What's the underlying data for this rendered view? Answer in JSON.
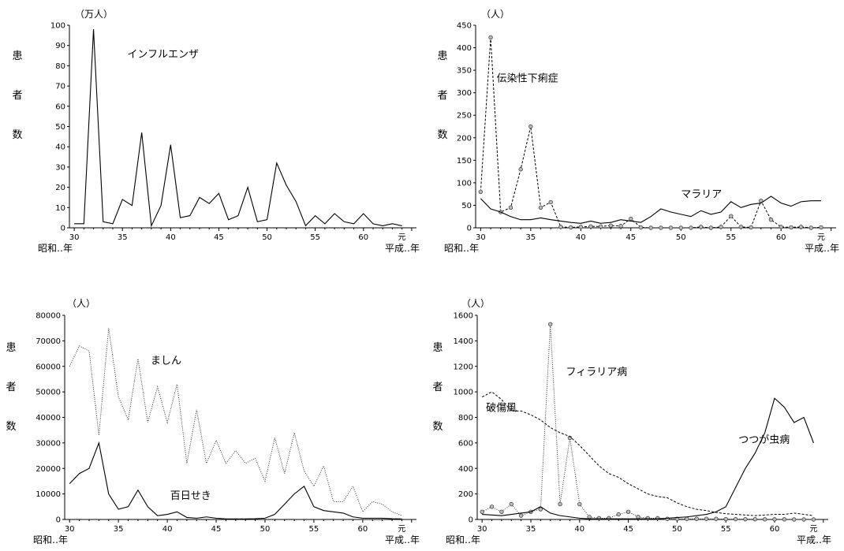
{
  "chart_data": [
    {
      "id": "influenza",
      "type": "line",
      "unit": "（万人）",
      "ylabel": [
        "患",
        "者",
        "数"
      ],
      "ylim": [
        0,
        100
      ],
      "yticks": [
        0,
        10,
        20,
        30,
        40,
        50,
        60,
        70,
        80,
        90,
        100
      ],
      "xlim": [
        29.5,
        65.5
      ],
      "xticks": [
        30,
        35,
        40,
        45,
        50,
        55,
        60
      ],
      "xtick_labels": [
        "30",
        "35",
        "40",
        "45",
        "50",
        "55",
        "60"
      ],
      "x_end_label": "元",
      "x_left_label": "昭和‥年",
      "x_right_label": "平成‥年",
      "series": [
        {
          "name": "インフルエンザ",
          "style": "solid",
          "label_pos": [
            35.5,
            84
          ],
          "x": [
            30,
            31,
            32,
            33,
            34,
            35,
            36,
            37,
            38,
            39,
            40,
            41,
            42,
            43,
            44,
            45,
            46,
            47,
            48,
            49,
            50,
            51,
            52,
            53,
            54,
            55,
            56,
            57,
            58,
            59,
            60,
            61,
            62,
            63,
            64
          ],
          "values": [
            2,
            2,
            98,
            3,
            2,
            14,
            11,
            47,
            1,
            11,
            41,
            5,
            6,
            15,
            12,
            17,
            4,
            6,
            20,
            3,
            4,
            32,
            21,
            13,
            1,
            6,
            2,
            7,
            3,
            2,
            7,
            2,
            1,
            2,
            1
          ]
        }
      ]
    },
    {
      "id": "dysentery-malaria",
      "type": "line",
      "unit": "（人）",
      "ylabel": [
        "患",
        "者",
        "数"
      ],
      "ylim": [
        0,
        450
      ],
      "yticks": [
        0,
        50,
        100,
        150,
        200,
        250,
        300,
        350,
        400,
        450
      ],
      "xlim": [
        29.5,
        65.5
      ],
      "xticks": [
        30,
        35,
        40,
        45,
        50,
        55,
        60
      ],
      "xtick_labels": [
        "30",
        "35",
        "40",
        "45",
        "50",
        "55",
        "60"
      ],
      "x_end_label": "元",
      "x_left_label": "昭和‥年",
      "x_right_label": "平成‥年",
      "series": [
        {
          "name": "伝染性下痢症",
          "style": "dashed",
          "markers": true,
          "label_pos": [
            31.6,
            325
          ],
          "x": [
            30,
            31,
            32,
            33,
            34,
            35,
            36,
            37,
            38,
            39,
            40,
            41,
            42,
            43,
            44,
            45,
            46,
            47,
            48,
            49,
            50,
            51,
            52,
            53,
            54,
            55,
            56,
            57,
            58,
            59,
            60,
            61,
            62,
            63,
            64
          ],
          "values": [
            80,
            423,
            35,
            45,
            130,
            225,
            45,
            57,
            2,
            1,
            2,
            3,
            3,
            5,
            4,
            20,
            1,
            0,
            0,
            0,
            0,
            0,
            2,
            0,
            2,
            26,
            2,
            1,
            60,
            18,
            2,
            1,
            2,
            0,
            1
          ]
        },
        {
          "name": "マラリア",
          "style": "solid",
          "markers": false,
          "label_pos": [
            50,
            67
          ],
          "x": [
            30,
            31,
            32,
            33,
            34,
            35,
            36,
            37,
            38,
            39,
            40,
            41,
            42,
            43,
            44,
            45,
            46,
            47,
            48,
            49,
            50,
            51,
            52,
            53,
            54,
            55,
            56,
            57,
            58,
            59,
            60,
            61,
            62,
            63,
            64
          ],
          "values": [
            65,
            42,
            35,
            25,
            18,
            18,
            22,
            18,
            15,
            12,
            10,
            15,
            10,
            12,
            18,
            15,
            12,
            25,
            42,
            35,
            30,
            25,
            38,
            30,
            35,
            58,
            45,
            52,
            55,
            70,
            55,
            48,
            58,
            60,
            60
          ]
        }
      ]
    },
    {
      "id": "measles-pertussis",
      "type": "line",
      "unit": "（人）",
      "ylabel": [
        "患",
        "者",
        "数"
      ],
      "ylim": [
        0,
        80000
      ],
      "yticks": [
        0,
        10000,
        20000,
        30000,
        40000,
        50000,
        60000,
        70000,
        80000
      ],
      "xlim": [
        29.5,
        65.5
      ],
      "xticks": [
        30,
        35,
        40,
        45,
        50,
        55,
        60
      ],
      "xtick_labels": [
        "30",
        "35",
        "40",
        "45",
        "50",
        "55",
        "60"
      ],
      "x_end_label": "元",
      "x_left_label": "昭和‥年",
      "x_right_label": "平成‥年",
      "series": [
        {
          "name": "ましん",
          "style": "dotted",
          "label_pos": [
            38.3,
            61000
          ],
          "x": [
            30,
            31,
            32,
            33,
            34,
            35,
            36,
            37,
            38,
            39,
            40,
            41,
            42,
            43,
            44,
            45,
            46,
            47,
            48,
            49,
            50,
            51,
            52,
            53,
            54,
            55,
            56,
            57,
            58,
            59,
            60,
            61,
            62,
            63,
            64
          ],
          "values": [
            60000,
            68000,
            66000,
            33000,
            75000,
            48000,
            39000,
            63000,
            38000,
            52000,
            38000,
            53000,
            22000,
            43000,
            22000,
            31000,
            22000,
            27000,
            22000,
            24000,
            15000,
            32000,
            18000,
            34000,
            19000,
            13000,
            21000,
            7000,
            7000,
            13000,
            3000,
            7000,
            6000,
            3000,
            1500
          ]
        },
        {
          "name": "百日せき",
          "style": "solid",
          "label_pos": [
            40.3,
            8000
          ],
          "x": [
            30,
            31,
            32,
            33,
            34,
            35,
            36,
            37,
            38,
            39,
            40,
            41,
            42,
            43,
            44,
            45,
            46,
            47,
            48,
            49,
            50,
            51,
            52,
            53,
            54,
            55,
            56,
            57,
            58,
            59,
            60,
            61,
            62,
            63,
            64
          ],
          "values": [
            14000,
            18000,
            20000,
            30000,
            10000,
            4000,
            5000,
            11500,
            5000,
            1500,
            2000,
            3000,
            800,
            500,
            1000,
            500,
            200,
            200,
            200,
            300,
            500,
            2000,
            6000,
            10000,
            13000,
            5000,
            3500,
            3000,
            2500,
            1000,
            500,
            500,
            500,
            300,
            200
          ]
        }
      ]
    },
    {
      "id": "filariasis-tetanus-tsutsugamushi",
      "type": "line",
      "unit": "（人）",
      "ylabel": [
        "患",
        "者",
        "数"
      ],
      "ylim": [
        0,
        1600
      ],
      "yticks": [
        0,
        200,
        400,
        600,
        800,
        1000,
        1200,
        1400,
        1600
      ],
      "xlim": [
        29.5,
        65.5
      ],
      "xticks": [
        30,
        35,
        40,
        45,
        50,
        55,
        60
      ],
      "xtick_labels": [
        "30",
        "35",
        "40",
        "45",
        "50",
        "55",
        "60"
      ],
      "x_end_label": "元",
      "x_left_label": "昭和‥年",
      "x_right_label": "平成‥年",
      "series": [
        {
          "name": "フィラリア病",
          "style": "dotted",
          "markers": true,
          "label_pos": [
            38.6,
            1130
          ],
          "x": [
            30,
            31,
            32,
            33,
            34,
            35,
            36,
            37,
            38,
            39,
            40,
            41,
            42,
            43,
            44,
            45,
            46,
            47,
            48,
            49,
            50,
            51,
            52,
            53,
            54,
            55,
            56,
            57,
            58,
            59,
            60,
            61,
            62,
            63,
            64
          ],
          "values": [
            60,
            100,
            60,
            120,
            30,
            60,
            80,
            1530,
            120,
            640,
            120,
            20,
            10,
            10,
            40,
            60,
            20,
            10,
            10,
            5,
            5,
            5,
            5,
            5,
            5,
            3,
            3,
            2,
            2,
            1,
            1,
            1,
            0,
            0,
            0
          ]
        },
        {
          "name": "破傷風",
          "style": "dashed",
          "label_pos": [
            30.4,
            850
          ],
          "x": [
            30,
            31,
            32,
            33,
            34,
            35,
            36,
            37,
            38,
            39,
            40,
            41,
            42,
            43,
            44,
            45,
            46,
            47,
            48,
            49,
            50,
            51,
            52,
            53,
            54,
            55,
            56,
            57,
            58,
            59,
            60,
            61,
            62,
            63,
            64
          ],
          "values": [
            960,
            1000,
            940,
            850,
            850,
            820,
            780,
            720,
            680,
            650,
            580,
            500,
            420,
            360,
            330,
            280,
            240,
            200,
            180,
            170,
            130,
            100,
            80,
            70,
            55,
            45,
            40,
            35,
            30,
            35,
            40,
            40,
            50,
            40,
            30
          ]
        },
        {
          "name": "つつが虫病",
          "style": "solid",
          "label_pos": [
            56.3,
            600
          ],
          "x": [
            30,
            31,
            32,
            33,
            34,
            35,
            36,
            37,
            38,
            39,
            40,
            41,
            42,
            43,
            44,
            45,
            46,
            47,
            48,
            49,
            50,
            51,
            52,
            53,
            54,
            55,
            56,
            57,
            58,
            59,
            60,
            61,
            62,
            63,
            64
          ],
          "values": [
            40,
            35,
            30,
            40,
            50,
            60,
            100,
            50,
            30,
            20,
            10,
            5,
            5,
            5,
            5,
            5,
            5,
            5,
            5,
            10,
            15,
            20,
            30,
            40,
            60,
            100,
            250,
            400,
            520,
            680,
            950,
            880,
            760,
            800,
            600
          ]
        }
      ]
    }
  ]
}
